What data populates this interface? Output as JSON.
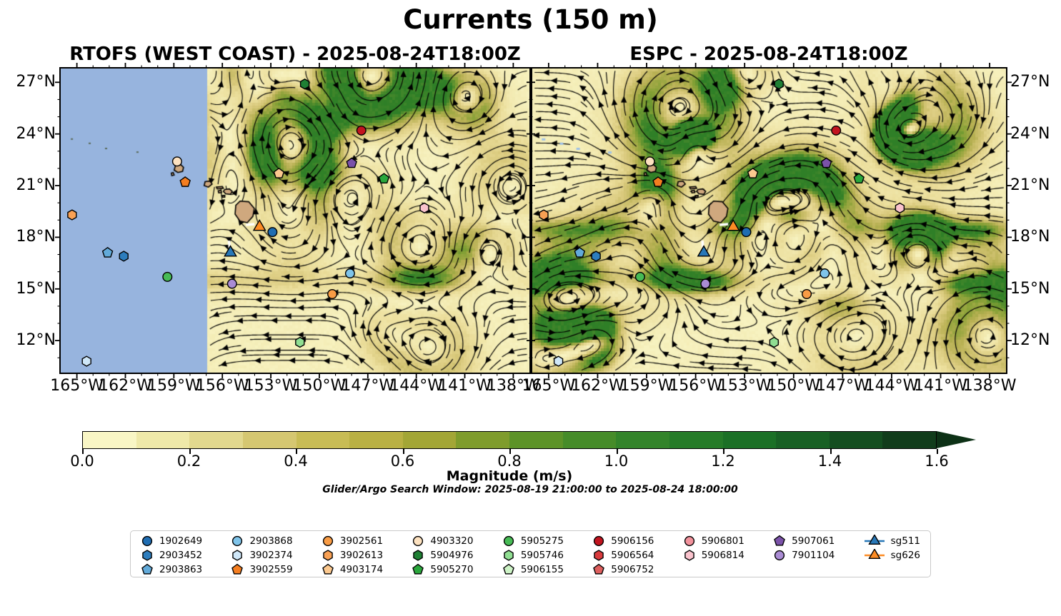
{
  "figure": {
    "title": "Currents (150 m)",
    "caption": "Glider/Argo Search Window: 2025-08-19 21:00:00 to 2025-08-24 18:00:00"
  },
  "panels": [
    {
      "title": "RTOFS (WEST COAST) - 2025-08-24T18:00Z"
    },
    {
      "title": "ESPC - 2025-08-24T18:00Z"
    }
  ],
  "axes": {
    "x_tick_labels": [
      "165°W",
      "162°W",
      "159°W",
      "156°W",
      "153°W",
      "150°W",
      "147°W",
      "144°W",
      "141°W",
      "138°W"
    ],
    "y_tick_labels": [
      "27°N",
      "24°N",
      "21°N",
      "18°N",
      "15°N",
      "12°N"
    ]
  },
  "colorbar": {
    "label": "Magnitude (m/s)",
    "tick_labels": [
      "0.0",
      "0.2",
      "0.4",
      "0.6",
      "0.8",
      "1.0",
      "1.2",
      "1.4",
      "1.6"
    ],
    "segment_colors": [
      "#f9f6c5",
      "#efe9a9",
      "#e2d88e",
      "#d5c771",
      "#c8bc55",
      "#b9b043",
      "#a3a636",
      "#7f9c2c",
      "#5d9328",
      "#468c29",
      "#33842a",
      "#257b28",
      "#1b7026",
      "#186024",
      "#144e20",
      "#113c1b"
    ],
    "arrow_color": "#0d3116"
  },
  "legend": {
    "columns": [
      {
        "items": [
          {
            "id": "1902649",
            "shape": "circle",
            "color": "#1f6db2"
          },
          {
            "id": "2903452",
            "shape": "hexagon",
            "color": "#2d7dbd"
          },
          {
            "id": "2903863",
            "shape": "pentagon",
            "color": "#62aad9"
          }
        ]
      },
      {
        "items": [
          {
            "id": "2903868",
            "shape": "circle",
            "color": "#7fc4ea"
          },
          {
            "id": "3902374",
            "shape": "hexagon",
            "color": "#cfe7f8"
          },
          {
            "id": "3902559",
            "shape": "pentagon",
            "color": "#f57e20"
          }
        ]
      },
      {
        "items": [
          {
            "id": "3902561",
            "shape": "circle",
            "color": "#f99c45"
          },
          {
            "id": "3902613",
            "shape": "hexagon",
            "color": "#f9a154"
          },
          {
            "id": "4903174",
            "shape": "pentagon",
            "color": "#fcc98f"
          }
        ]
      },
      {
        "items": [
          {
            "id": "4903320",
            "shape": "circle",
            "color": "#fde2c0"
          },
          {
            "id": "5904976",
            "shape": "hexagon",
            "color": "#1f8034"
          },
          {
            "id": "5905270",
            "shape": "pentagon",
            "color": "#2aa73c"
          }
        ]
      },
      {
        "items": [
          {
            "id": "5905275",
            "shape": "circle",
            "color": "#47bb55"
          },
          {
            "id": "5905746",
            "shape": "hexagon",
            "color": "#90de92"
          },
          {
            "id": "5906155",
            "shape": "pentagon",
            "color": "#cdf3c6"
          }
        ]
      },
      {
        "items": [
          {
            "id": "5906156",
            "shape": "circle",
            "color": "#c2141f"
          },
          {
            "id": "5906564",
            "shape": "hexagon",
            "color": "#d93b3d"
          },
          {
            "id": "5906752",
            "shape": "pentagon",
            "color": "#de5f5e"
          }
        ]
      },
      {
        "items": [
          {
            "id": "5906801",
            "shape": "circle",
            "color": "#f2929c"
          },
          {
            "id": "5906814",
            "shape": "hexagon",
            "color": "#fac3cd"
          }
        ]
      },
      {
        "items": [
          {
            "id": "5907061",
            "shape": "pentagon",
            "color": "#7b52a9"
          },
          {
            "id": "7901104",
            "shape": "circle",
            "color": "#aa8cd4"
          }
        ]
      },
      {
        "items": [
          {
            "id": "sg511",
            "shape": "glider",
            "color": "#2878b8"
          },
          {
            "id": "sg626",
            "shape": "glider",
            "color": "#fd8c24"
          }
        ]
      }
    ]
  },
  "chart_data": {
    "type": "map-streamplot",
    "title": "Currents (150 m)",
    "panels": [
      "RTOFS (WEST COAST) - 2025-08-24T18:00Z",
      "ESPC - 2025-08-24T18:00Z"
    ],
    "region": "Hawaiian Islands, central North Pacific",
    "lon_range": [
      -166,
      -137
    ],
    "lat_range": [
      10.1,
      27.8
    ],
    "x_ticks_deg_west": [
      165,
      162,
      159,
      156,
      153,
      150,
      147,
      144,
      141,
      138
    ],
    "y_ticks_deg_north": [
      27,
      24,
      21,
      18,
      15,
      12
    ],
    "colorbar": {
      "label": "Magnitude (m/s)",
      "min": 0.0,
      "max": 1.6,
      "tick_step": 0.2,
      "extended_above_max": true
    },
    "no_data_region": {
      "panel": "RTOFS (WEST COAST)",
      "lon_range": [
        -166,
        -156.9
      ]
    },
    "search_window": {
      "start": "2025-08-19 21:00:00",
      "end": "2025-08-24 18:00:00"
    },
    "platforms": [
      {
        "id": "1902649",
        "lon": -152.9,
        "lat": 18.3
      },
      {
        "id": "2903452",
        "lon": -162.1,
        "lat": 16.9
      },
      {
        "id": "2903863",
        "lon": -163.1,
        "lat": 17.1
      },
      {
        "id": "2903868",
        "lon": -148.1,
        "lat": 15.9
      },
      {
        "id": "3902374",
        "lon": -164.4,
        "lat": 10.8
      },
      {
        "id": "3902559",
        "lon": -158.3,
        "lat": 21.2
      },
      {
        "id": "3902561",
        "lon": -149.2,
        "lat": 14.7
      },
      {
        "id": "3902613",
        "lon": -165.3,
        "lat": 19.3
      },
      {
        "id": "4903174",
        "lon": -152.5,
        "lat": 21.7
      },
      {
        "id": "4903320",
        "lon": -158.8,
        "lat": 22.4
      },
      {
        "id": "5904976",
        "lon": -150.9,
        "lat": 26.9
      },
      {
        "id": "5905270",
        "lon": -146.0,
        "lat": 21.4
      },
      {
        "id": "5905275",
        "lon": -159.4,
        "lat": 15.7
      },
      {
        "id": "5905746",
        "lon": -151.2,
        "lat": 11.9
      },
      {
        "id": "5906156",
        "lon": -147.4,
        "lat": 24.2
      },
      {
        "id": "5906814",
        "lon": -143.5,
        "lat": 19.7
      },
      {
        "id": "5907061",
        "lon": -148.0,
        "lat": 22.3
      },
      {
        "id": "7901104",
        "lon": -155.4,
        "lat": 15.3
      },
      {
        "id": "sg511",
        "lon": -155.5,
        "lat": 17.1,
        "track_mark": "short white segment (vertical)"
      },
      {
        "id": "sg626",
        "lon": -153.7,
        "lat": 18.6,
        "track_mark": "short white segment (horizontal)"
      }
    ]
  }
}
